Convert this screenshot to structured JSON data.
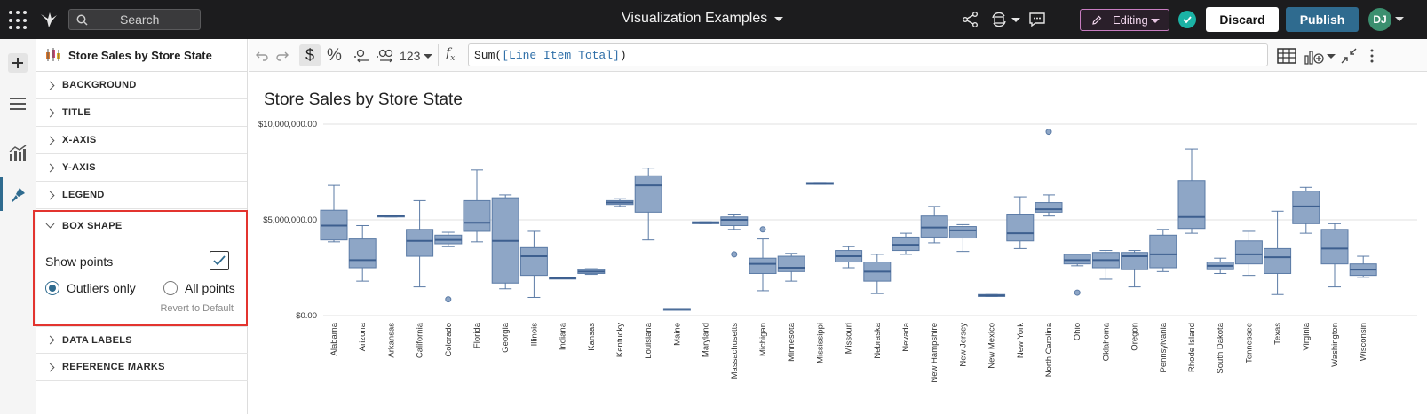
{
  "topbar": {
    "search_placeholder": "Search",
    "doc_title": "Visualization Examples",
    "mode_label": "Editing",
    "discard_label": "Discard",
    "publish_label": "Publish",
    "avatar_initials": "DJ"
  },
  "panel": {
    "title": "Store Sales by Store State",
    "sections_before": [
      "BACKGROUND",
      "TITLE",
      "X-AXIS",
      "Y-AXIS",
      "LEGEND"
    ],
    "box_shape": {
      "label": "BOX SHAPE",
      "show_points_label": "Show points",
      "show_points_checked": true,
      "options": [
        "Outliers only",
        "All points"
      ],
      "selected_option": "Outliers only",
      "revert_label": "Revert to Default"
    },
    "sections_after": [
      "DATA LABELS",
      "REFERENCE MARKS"
    ]
  },
  "formula": {
    "number_format_label": "123",
    "fx_prefix": "Sum(",
    "fx_ref": "[Line Item Total]",
    "fx_suffix": ")"
  },
  "colors": {
    "box_fill": "#8ea6c6",
    "box_stroke": "#5b7ba6",
    "median": "#3d5f8f",
    "accent": "#2f6b8f",
    "highlight": "#e3342f"
  },
  "chart_data": {
    "type": "boxplot",
    "title": "Store Sales by Store State",
    "y_ticks": [
      "$10,000,000.00",
      "$5,000,000.00",
      "$0.00"
    ],
    "ylim": [
      0,
      10000000
    ],
    "grid": true,
    "categories": [
      "Alabama",
      "Arizona",
      "Arkansas",
      "California",
      "Colorado",
      "Florida",
      "Georgia",
      "Illinois",
      "Indiana",
      "Kansas",
      "Kentucky",
      "Louisiana",
      "Maine",
      "Maryland",
      "Massachusetts",
      "Michigan",
      "Minnesota",
      "Mississippi",
      "Missouri",
      "Nebraska",
      "Nevada",
      "New Hampshire",
      "New Jersey",
      "New Mexico",
      "New York",
      "North Carolina",
      "Ohio",
      "Oklahoma",
      "Oregon",
      "Pennsylvania",
      "Rhode Island",
      "South Dakota",
      "Tennessee",
      "Texas",
      "Virginia",
      "Washington",
      "Wisconsin"
    ],
    "boxes": [
      {
        "min": 3850000,
        "q1": 3950000,
        "median": 4700000,
        "q3": 5500000,
        "max": 6800000,
        "outliers": []
      },
      {
        "min": 1800000,
        "q1": 2500000,
        "median": 2900000,
        "q3": 4000000,
        "max": 4700000,
        "outliers": []
      },
      {
        "min": 5150000,
        "q1": 5150000,
        "median": 5200000,
        "q3": 5250000,
        "max": 5250000,
        "outliers": []
      },
      {
        "min": 1500000,
        "q1": 3100000,
        "median": 3900000,
        "q3": 4500000,
        "max": 6000000,
        "outliers": []
      },
      {
        "min": 3600000,
        "q1": 3750000,
        "median": 3950000,
        "q3": 4200000,
        "max": 4350000,
        "outliers": [
          850000
        ]
      },
      {
        "min": 3850000,
        "q1": 4400000,
        "median": 4850000,
        "q3": 6000000,
        "max": 7600000,
        "outliers": []
      },
      {
        "min": 1400000,
        "q1": 1700000,
        "median": 3900000,
        "q3": 6150000,
        "max": 6300000,
        "outliers": []
      },
      {
        "min": 950000,
        "q1": 2100000,
        "median": 3100000,
        "q3": 3550000,
        "max": 4400000,
        "outliers": []
      },
      {
        "min": 1950000,
        "q1": 1950000,
        "median": 1950000,
        "q3": 2000000,
        "max": 2000000,
        "outliers": []
      },
      {
        "min": 2150000,
        "q1": 2200000,
        "median": 2300000,
        "q3": 2400000,
        "max": 2450000,
        "outliers": []
      },
      {
        "min": 5700000,
        "q1": 5800000,
        "median": 5900000,
        "q3": 6000000,
        "max": 6100000,
        "outliers": []
      },
      {
        "min": 3950000,
        "q1": 5400000,
        "median": 6800000,
        "q3": 7300000,
        "max": 7700000,
        "outliers": []
      },
      {
        "min": 320000,
        "q1": 320000,
        "median": 350000,
        "q3": 370000,
        "max": 370000,
        "outliers": []
      },
      {
        "min": 4800000,
        "q1": 4800000,
        "median": 4850000,
        "q3": 4900000,
        "max": 4900000,
        "outliers": []
      },
      {
        "min": 4500000,
        "q1": 4700000,
        "median": 5000000,
        "q3": 5150000,
        "max": 5300000,
        "outliers": [
          3200000
        ]
      },
      {
        "min": 1300000,
        "q1": 2200000,
        "median": 2700000,
        "q3": 3000000,
        "max": 4000000,
        "outliers": [
          4500000
        ]
      },
      {
        "min": 1800000,
        "q1": 2300000,
        "median": 2500000,
        "q3": 3100000,
        "max": 3250000,
        "outliers": []
      },
      {
        "min": 6850000,
        "q1": 6850000,
        "median": 6900000,
        "q3": 6950000,
        "max": 6950000,
        "outliers": []
      },
      {
        "min": 2500000,
        "q1": 2800000,
        "median": 3100000,
        "q3": 3400000,
        "max": 3600000,
        "outliers": []
      },
      {
        "min": 1150000,
        "q1": 1800000,
        "median": 2300000,
        "q3": 2800000,
        "max": 3200000,
        "outliers": []
      },
      {
        "min": 3200000,
        "q1": 3400000,
        "median": 3700000,
        "q3": 4100000,
        "max": 4300000,
        "outliers": []
      },
      {
        "min": 3800000,
        "q1": 4100000,
        "median": 4600000,
        "q3": 5200000,
        "max": 5700000,
        "outliers": []
      },
      {
        "min": 3350000,
        "q1": 4050000,
        "median": 4450000,
        "q3": 4650000,
        "max": 4750000,
        "outliers": []
      },
      {
        "min": 1000000,
        "q1": 1000000,
        "median": 1050000,
        "q3": 1100000,
        "max": 1100000,
        "outliers": []
      },
      {
        "min": 3500000,
        "q1": 3900000,
        "median": 4300000,
        "q3": 5300000,
        "max": 6200000,
        "outliers": []
      },
      {
        "min": 5200000,
        "q1": 5400000,
        "median": 5550000,
        "q3": 5900000,
        "max": 6300000,
        "outliers": [
          9600000
        ]
      },
      {
        "min": 2600000,
        "q1": 2700000,
        "median": 2900000,
        "q3": 3200000,
        "max": 3200000,
        "outliers": [
          1200000
        ]
      },
      {
        "min": 1900000,
        "q1": 2500000,
        "median": 2900000,
        "q3": 3300000,
        "max": 3400000,
        "outliers": []
      },
      {
        "min": 1500000,
        "q1": 2400000,
        "median": 3100000,
        "q3": 3300000,
        "max": 3400000,
        "outliers": []
      },
      {
        "min": 2300000,
        "q1": 2500000,
        "median": 3200000,
        "q3": 4200000,
        "max": 4500000,
        "outliers": []
      },
      {
        "min": 4300000,
        "q1": 4550000,
        "median": 5150000,
        "q3": 7050000,
        "max": 8700000,
        "outliers": []
      },
      {
        "min": 2200000,
        "q1": 2400000,
        "median": 2600000,
        "q3": 2800000,
        "max": 3000000,
        "outliers": []
      },
      {
        "min": 2100000,
        "q1": 2700000,
        "median": 3200000,
        "q3": 3900000,
        "max": 4400000,
        "outliers": []
      },
      {
        "min": 1100000,
        "q1": 2200000,
        "median": 3050000,
        "q3": 3500000,
        "max": 5450000,
        "outliers": []
      },
      {
        "min": 4300000,
        "q1": 4800000,
        "median": 5700000,
        "q3": 6500000,
        "max": 6700000,
        "outliers": []
      },
      {
        "min": 1500000,
        "q1": 2700000,
        "median": 3500000,
        "q3": 4500000,
        "max": 4800000,
        "outliers": []
      },
      {
        "min": 2000000,
        "q1": 2100000,
        "median": 2400000,
        "q3": 2700000,
        "max": 3100000,
        "outliers": []
      }
    ]
  }
}
